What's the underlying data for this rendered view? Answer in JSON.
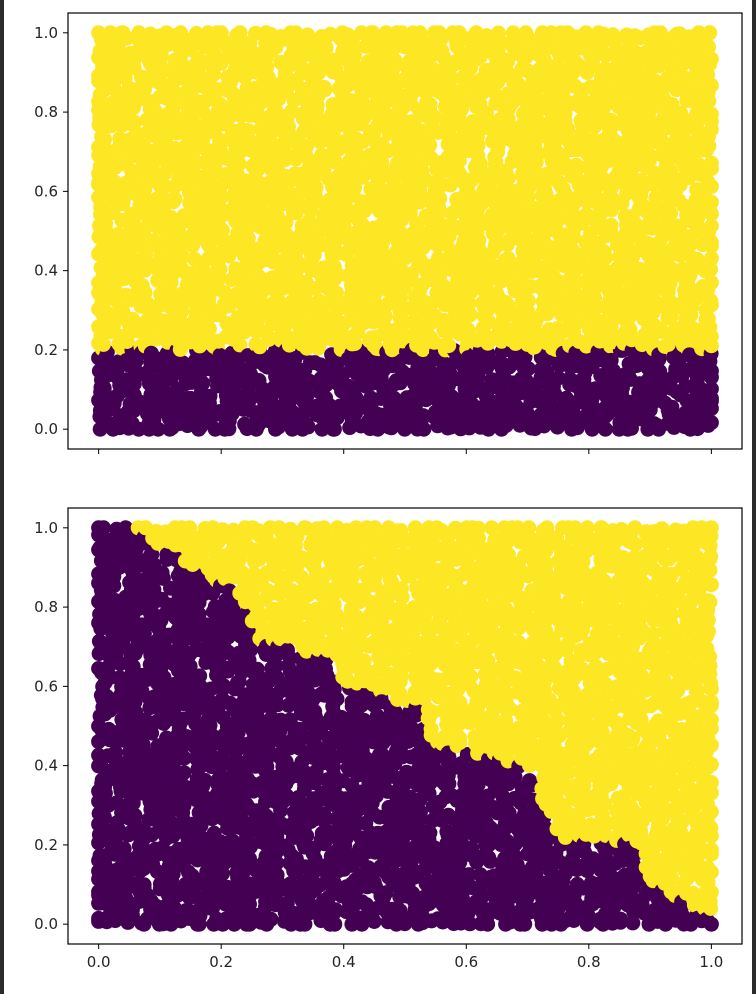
{
  "figure": {
    "background": "#ffffff"
  },
  "chart_data": [
    {
      "type": "scatter",
      "title": "",
      "xlabel": "",
      "ylabel": "",
      "xlim": [
        -0.05,
        1.05
      ],
      "ylim": [
        -0.05,
        1.05
      ],
      "xticks": [
        "0.0",
        "0.2",
        "0.4",
        "0.6",
        "0.8",
        "1.0"
      ],
      "yticks": [
        "0.0",
        "0.2",
        "0.4",
        "0.6",
        "0.8",
        "1.0"
      ],
      "x_range": [
        0,
        1
      ],
      "y_range": [
        0,
        1
      ],
      "colors": {
        "class0": "#440154",
        "class1": "#fde725"
      },
      "boundary": {
        "kind": "horizontal",
        "points": [
          [
            0,
            0.2
          ],
          [
            1,
            0.2
          ]
        ]
      },
      "grid": false,
      "legend": "none"
    },
    {
      "type": "scatter",
      "title": "",
      "xlabel": "",
      "ylabel": "",
      "xlim": [
        -0.05,
        1.05
      ],
      "ylim": [
        -0.05,
        1.05
      ],
      "xticks": [
        "0.0",
        "0.2",
        "0.4",
        "0.6",
        "0.8",
        "1.0"
      ],
      "yticks": [
        "0.0",
        "0.2",
        "0.4",
        "0.6",
        "0.8",
        "1.0"
      ],
      "x_range": [
        0,
        1
      ],
      "y_range": [
        0,
        1
      ],
      "colors": {
        "class0": "#440154",
        "class1": "#fde725"
      },
      "boundary": {
        "kind": "staircase",
        "points": [
          [
            0.05,
            1.0
          ],
          [
            0.1,
            0.95
          ],
          [
            0.18,
            0.88
          ],
          [
            0.25,
            0.8
          ],
          [
            0.25,
            0.72
          ],
          [
            0.38,
            0.67
          ],
          [
            0.4,
            0.6
          ],
          [
            0.52,
            0.55
          ],
          [
            0.55,
            0.45
          ],
          [
            0.7,
            0.4
          ],
          [
            0.72,
            0.3
          ],
          [
            0.75,
            0.22
          ],
          [
            0.88,
            0.2
          ],
          [
            0.9,
            0.1
          ],
          [
            0.98,
            0.04
          ],
          [
            1.0,
            0.01
          ]
        ]
      },
      "grid": false,
      "legend": "none"
    }
  ]
}
